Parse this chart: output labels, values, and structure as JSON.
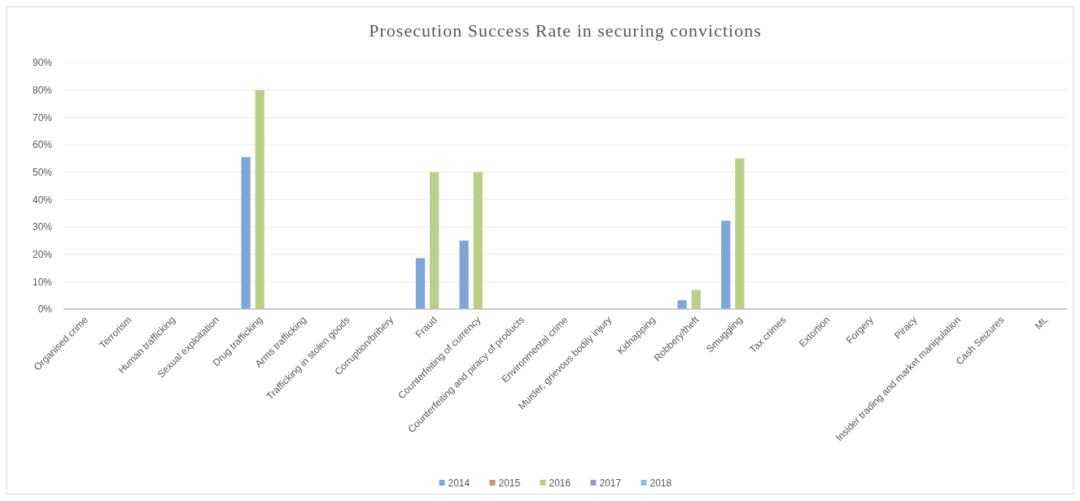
{
  "chart_data": {
    "type": "bar",
    "title": "Prosecution Success Rate in securing convictions",
    "categories": [
      "Organised crime",
      "Terrorism",
      "Human trafficking",
      "Sexual exploitation",
      "Drug trafficking",
      "Arms trafficking",
      "Trafficking in stolen goods",
      "Corruption/bribery",
      "Fraud",
      "Counterfeiting  of currency",
      "Counterfeiting and piracy of products",
      "Environmental  crime",
      "Murder, grievous bodily injury",
      "Kidnapping",
      "Robbery/theft",
      "Smuggling",
      "Tax crimes",
      "Extortion",
      "Forgery",
      "Piracy",
      "Insider trading and market manipulation",
      "Cash Seizures",
      "ML"
    ],
    "series": [
      {
        "name": "2014",
        "color": "#7fa6d4",
        "values": [
          null,
          null,
          null,
          null,
          55.5,
          null,
          null,
          null,
          18.6,
          25,
          null,
          null,
          null,
          null,
          3.2,
          32.3,
          null,
          null,
          null,
          null,
          null,
          null,
          null
        ]
      },
      {
        "name": "2015",
        "color": "#dc8580",
        "values": [
          null,
          null,
          null,
          null,
          null,
          null,
          null,
          null,
          null,
          null,
          null,
          null,
          null,
          null,
          null,
          null,
          null,
          null,
          null,
          null,
          null,
          null,
          null
        ]
      },
      {
        "name": "2016",
        "color": "#bace87",
        "values": [
          null,
          null,
          null,
          null,
          80,
          null,
          null,
          null,
          50,
          50,
          null,
          null,
          null,
          null,
          7,
          55,
          null,
          null,
          null,
          null,
          null,
          null,
          null
        ]
      },
      {
        "name": "2017",
        "color": "#a492c4",
        "values": [
          null,
          null,
          null,
          null,
          null,
          null,
          null,
          null,
          null,
          null,
          null,
          null,
          null,
          null,
          null,
          null,
          null,
          null,
          null,
          null,
          null,
          null,
          null
        ]
      },
      {
        "name": "2018",
        "color": "#7ec6d8",
        "values": [
          null,
          null,
          null,
          null,
          null,
          null,
          null,
          null,
          null,
          null,
          null,
          null,
          null,
          null,
          null,
          null,
          null,
          null,
          null,
          null,
          null,
          null,
          null
        ]
      }
    ],
    "ylim": [
      0,
      90
    ],
    "yticks": [
      {
        "value": 0,
        "label": "0%"
      },
      {
        "value": 10,
        "label": "10%"
      },
      {
        "value": 20,
        "label": "20%"
      },
      {
        "value": 30,
        "label": "30%"
      },
      {
        "value": 40,
        "label": "40%"
      },
      {
        "value": 50,
        "label": "50%"
      },
      {
        "value": 60,
        "label": "60%"
      },
      {
        "value": 70,
        "label": "70%"
      },
      {
        "value": 80,
        "label": "80%"
      },
      {
        "value": 90,
        "label": "90%"
      }
    ],
    "grid": "y",
    "legend": "bottom"
  }
}
